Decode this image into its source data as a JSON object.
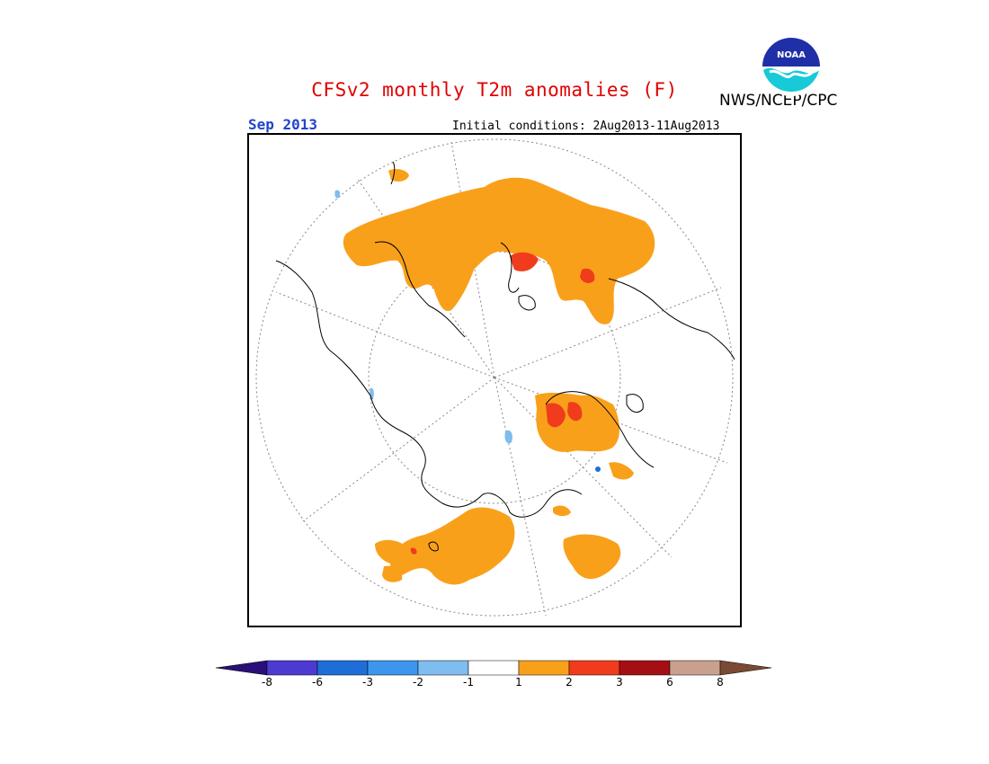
{
  "header": {
    "title": "CFSv2 monthly T2m anomalies (F)",
    "org": "NWS/NCEP/CPC",
    "month": "Sep 2013",
    "initial_conditions": "Initial conditions: 2Aug2013-11Aug2013",
    "logo_text": "NOAA"
  },
  "legend": {
    "tick_labels": [
      "-8",
      "-6",
      "-3",
      "-2",
      "-1",
      "1",
      "2",
      "3",
      "6",
      "8"
    ],
    "colors": {
      "below_-8": "#2a0f7a",
      "-8_-6": "#4d3ad0",
      "-6_-3": "#1f6ed8",
      "-3_-2": "#3d96ee",
      "-2_-1": "#7fbcf0",
      "-1_1": "#ffffff",
      "1_2": "#f9a01b",
      "2_3": "#f03c1c",
      "3_6": "#a50f14",
      "6_8": "#c9a08e",
      "above_8": "#7a4a34"
    }
  },
  "map": {
    "projection": "north polar stereographic",
    "variable": "2m temperature anomaly",
    "units": "F"
  }
}
